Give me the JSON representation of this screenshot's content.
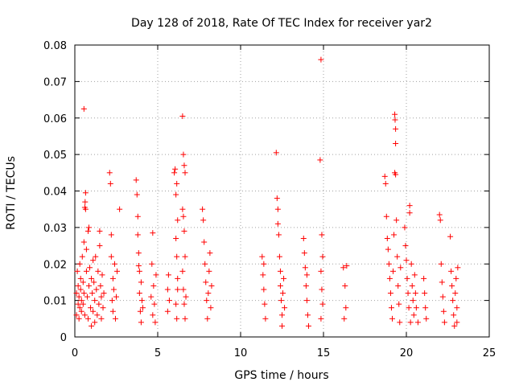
{
  "chart_data": {
    "type": "scatter",
    "title": "Day 128 of 2018, Rate Of TEC Index for receiver yar2",
    "xlabel": "GPS time / hours",
    "ylabel": "ROTI / TECUs",
    "xlim": [
      0,
      25
    ],
    "ylim": [
      0,
      0.08
    ],
    "xticks": [
      0,
      5,
      10,
      15,
      20,
      25
    ],
    "yticks": [
      0,
      0.01,
      0.02,
      0.03,
      0.04,
      0.05,
      0.06,
      0.07,
      0.08
    ],
    "xtick_labels": [
      "0",
      "5",
      "10",
      "15",
      "20",
      "25"
    ],
    "ytick_labels": [
      "0",
      "0.01",
      "0.02",
      "0.03",
      "0.04",
      "0.05",
      "0.06",
      "0.07",
      "0.08"
    ],
    "grid": true,
    "marker": "+",
    "color": "#ff0000",
    "series": [
      {
        "name": "ROTI",
        "points": [
          [
            0.1,
            0.012
          ],
          [
            0.1,
            0.006
          ],
          [
            0.15,
            0.018
          ],
          [
            0.2,
            0.009
          ],
          [
            0.2,
            0.014
          ],
          [
            0.25,
            0.005
          ],
          [
            0.25,
            0.011
          ],
          [
            0.3,
            0.02
          ],
          [
            0.3,
            0.008
          ],
          [
            0.35,
            0.013
          ],
          [
            0.35,
            0.016
          ],
          [
            0.4,
            0.007
          ],
          [
            0.4,
            0.01
          ],
          [
            0.45,
            0.022
          ],
          [
            0.5,
            0.015
          ],
          [
            0.5,
            0.009
          ],
          [
            0.55,
            0.012
          ],
          [
            0.55,
            0.026
          ],
          [
            0.6,
            0.006
          ],
          [
            0.6,
            0.0355
          ],
          [
            0.62,
            0.037
          ],
          [
            0.65,
            0.0395
          ],
          [
            0.65,
            0.035
          ],
          [
            0.7,
            0.024
          ],
          [
            0.7,
            0.018
          ],
          [
            0.75,
            0.011
          ],
          [
            0.8,
            0.029
          ],
          [
            0.8,
            0.005
          ],
          [
            0.85,
            0.014
          ],
          [
            0.85,
            0.03
          ],
          [
            0.9,
            0.019
          ],
          [
            0.95,
            0.008
          ],
          [
            1.0,
            0.016
          ],
          [
            1.0,
            0.003
          ],
          [
            1.05,
            0.012
          ],
          [
            1.1,
            0.021
          ],
          [
            1.1,
            0.007
          ],
          [
            1.15,
            0.015
          ],
          [
            1.2,
            0.004
          ],
          [
            1.2,
            0.01
          ],
          [
            1.25,
            0.022
          ],
          [
            1.3,
            0.013
          ],
          [
            1.35,
            0.006
          ],
          [
            1.4,
            0.018
          ],
          [
            1.45,
            0.009
          ],
          [
            1.5,
            0.025
          ],
          [
            1.5,
            0.029
          ],
          [
            1.55,
            0.014
          ],
          [
            1.6,
            0.005
          ],
          [
            1.6,
            0.011
          ],
          [
            1.65,
            0.017
          ],
          [
            1.7,
            0.008
          ],
          [
            1.75,
            0.012
          ],
          [
            0.55,
            0.0625
          ],
          [
            2.1,
            0.045
          ],
          [
            2.15,
            0.042
          ],
          [
            2.2,
            0.028
          ],
          [
            2.2,
            0.022
          ],
          [
            2.25,
            0.01
          ],
          [
            2.3,
            0.016
          ],
          [
            2.3,
            0.007
          ],
          [
            2.35,
            0.013
          ],
          [
            2.4,
            0.02
          ],
          [
            2.45,
            0.005
          ],
          [
            2.5,
            0.011
          ],
          [
            2.55,
            0.018
          ],
          [
            2.7,
            0.035
          ],
          [
            3.7,
            0.043
          ],
          [
            3.75,
            0.039
          ],
          [
            3.8,
            0.033
          ],
          [
            3.8,
            0.028
          ],
          [
            3.85,
            0.023
          ],
          [
            3.9,
            0.018
          ],
          [
            3.9,
            0.012
          ],
          [
            3.95,
            0.007
          ],
          [
            4.0,
            0.015
          ],
          [
            4.0,
            0.004
          ],
          [
            4.05,
            0.01
          ],
          [
            3.85,
            0.0195
          ],
          [
            4.1,
            0.008
          ],
          [
            4.6,
            0.011
          ],
          [
            4.65,
            0.02
          ],
          [
            4.7,
            0.006
          ],
          [
            4.75,
            0.014
          ],
          [
            4.8,
            0.009
          ],
          [
            4.85,
            0.004
          ],
          [
            4.9,
            0.017
          ],
          [
            4.7,
            0.0285
          ],
          [
            5.6,
            0.013
          ],
          [
            5.6,
            0.007
          ],
          [
            5.7,
            0.01
          ],
          [
            5.65,
            0.017
          ],
          [
            6.0,
            0.045
          ],
          [
            6.05,
            0.046
          ],
          [
            6.1,
            0.039
          ],
          [
            6.15,
            0.042
          ],
          [
            6.2,
            0.032
          ],
          [
            6.1,
            0.027
          ],
          [
            6.15,
            0.022
          ],
          [
            6.2,
            0.016
          ],
          [
            6.1,
            0.009
          ],
          [
            6.15,
            0.005
          ],
          [
            6.2,
            0.013
          ],
          [
            6.5,
            0.0605
          ],
          [
            6.55,
            0.05
          ],
          [
            6.6,
            0.047
          ],
          [
            6.65,
            0.045
          ],
          [
            6.5,
            0.035
          ],
          [
            6.55,
            0.033
          ],
          [
            6.6,
            0.029
          ],
          [
            6.65,
            0.022
          ],
          [
            6.5,
            0.018
          ],
          [
            6.55,
            0.013
          ],
          [
            6.6,
            0.009
          ],
          [
            6.65,
            0.005
          ],
          [
            6.7,
            0.011
          ],
          [
            7.7,
            0.035
          ],
          [
            7.75,
            0.032
          ],
          [
            7.8,
            0.026
          ],
          [
            7.85,
            0.02
          ],
          [
            7.9,
            0.015
          ],
          [
            7.95,
            0.01
          ],
          [
            8.0,
            0.005
          ],
          [
            8.05,
            0.012
          ],
          [
            8.1,
            0.018
          ],
          [
            8.15,
            0.023
          ],
          [
            8.2,
            0.008
          ],
          [
            8.25,
            0.014
          ],
          [
            11.3,
            0.022
          ],
          [
            11.35,
            0.017
          ],
          [
            11.4,
            0.013
          ],
          [
            11.45,
            0.009
          ],
          [
            11.5,
            0.005
          ],
          [
            11.4,
            0.02
          ],
          [
            12.15,
            0.0505
          ],
          [
            12.2,
            0.038
          ],
          [
            12.25,
            0.035
          ],
          [
            12.25,
            0.031
          ],
          [
            12.3,
            0.028
          ],
          [
            12.35,
            0.022
          ],
          [
            12.4,
            0.018
          ],
          [
            12.4,
            0.014
          ],
          [
            12.45,
            0.01
          ],
          [
            12.5,
            0.006
          ],
          [
            12.5,
            0.003
          ],
          [
            12.55,
            0.012
          ],
          [
            12.6,
            0.016
          ],
          [
            12.65,
            0.008
          ],
          [
            13.8,
            0.027
          ],
          [
            13.85,
            0.023
          ],
          [
            13.9,
            0.019
          ],
          [
            13.95,
            0.014
          ],
          [
            14.0,
            0.01
          ],
          [
            14.05,
            0.006
          ],
          [
            14.1,
            0.003
          ],
          [
            14.0,
            0.017
          ],
          [
            14.85,
            0.076
          ],
          [
            14.8,
            0.0485
          ],
          [
            14.9,
            0.028
          ],
          [
            14.95,
            0.022
          ],
          [
            14.85,
            0.018
          ],
          [
            14.9,
            0.013
          ],
          [
            14.95,
            0.009
          ],
          [
            14.85,
            0.005
          ],
          [
            16.2,
            0.019
          ],
          [
            16.3,
            0.014
          ],
          [
            16.4,
            0.0195
          ],
          [
            16.35,
            0.008
          ],
          [
            16.25,
            0.005
          ],
          [
            18.7,
            0.044
          ],
          [
            18.75,
            0.042
          ],
          [
            18.8,
            0.033
          ],
          [
            18.85,
            0.027
          ],
          [
            18.9,
            0.024
          ],
          [
            18.95,
            0.02
          ],
          [
            19.0,
            0.016
          ],
          [
            19.05,
            0.012
          ],
          [
            19.1,
            0.008
          ],
          [
            19.15,
            0.005
          ],
          [
            19.2,
            0.018
          ],
          [
            19.25,
            0.028
          ],
          [
            19.3,
            0.061
          ],
          [
            19.32,
            0.0595
          ],
          [
            19.35,
            0.057
          ],
          [
            19.35,
            0.053
          ],
          [
            19.3,
            0.045
          ],
          [
            19.35,
            0.0445
          ],
          [
            19.4,
            0.032
          ],
          [
            19.45,
            0.022
          ],
          [
            19.5,
            0.014
          ],
          [
            19.55,
            0.009
          ],
          [
            19.6,
            0.004
          ],
          [
            19.65,
            0.019
          ],
          [
            19.9,
            0.03
          ],
          [
            19.95,
            0.025
          ],
          [
            20.0,
            0.021
          ],
          [
            20.05,
            0.016
          ],
          [
            20.1,
            0.012
          ],
          [
            20.15,
            0.008
          ],
          [
            20.2,
            0.036
          ],
          [
            20.2,
            0.034
          ],
          [
            20.25,
            0.004
          ],
          [
            20.3,
            0.02
          ],
          [
            20.35,
            0.014
          ],
          [
            20.4,
            0.01
          ],
          [
            20.45,
            0.006
          ],
          [
            20.5,
            0.017
          ],
          [
            20.55,
            0.012
          ],
          [
            20.6,
            0.008
          ],
          [
            20.7,
            0.004
          ],
          [
            21.05,
            0.016
          ],
          [
            21.1,
            0.012
          ],
          [
            21.15,
            0.008
          ],
          [
            21.2,
            0.005
          ],
          [
            22.0,
            0.0335
          ],
          [
            22.05,
            0.032
          ],
          [
            22.1,
            0.02
          ],
          [
            22.15,
            0.015
          ],
          [
            22.2,
            0.011
          ],
          [
            22.25,
            0.007
          ],
          [
            22.3,
            0.004
          ],
          [
            22.65,
            0.0275
          ],
          [
            22.7,
            0.018
          ],
          [
            22.75,
            0.014
          ],
          [
            22.8,
            0.01
          ],
          [
            22.85,
            0.006
          ],
          [
            22.9,
            0.003
          ],
          [
            22.95,
            0.012
          ],
          [
            23.0,
            0.016
          ],
          [
            23.05,
            0.008
          ],
          [
            23.1,
            0.019
          ],
          [
            23.05,
            0.004
          ]
        ]
      }
    ]
  }
}
